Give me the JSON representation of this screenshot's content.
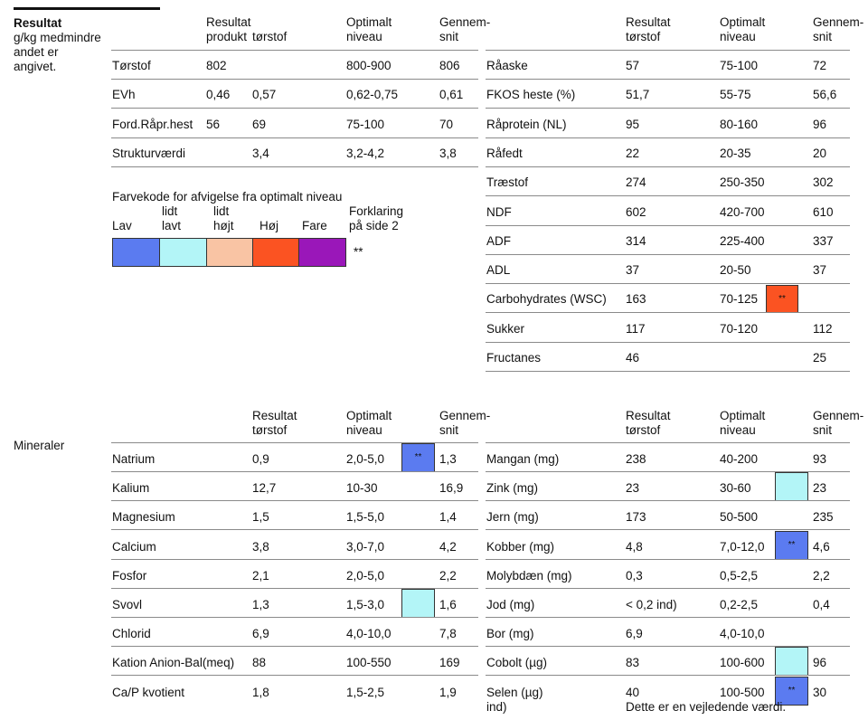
{
  "heading": {
    "title": "Resultat",
    "subtitle_lines": [
      "g/kg medmindre",
      "andet er",
      "angivet."
    ]
  },
  "block1": {
    "left_headers": {
      "c1": [
        "Resultat",
        "produkt"
      ],
      "c2": [
        "",
        "tørstof"
      ],
      "c3": [
        "Optimalt",
        "niveau"
      ],
      "c4": [
        "Gennem-",
        "snit"
      ]
    },
    "left_rows": [
      {
        "name": "Tørstof",
        "prod": "802",
        "ts": "",
        "opt": "800-900",
        "avg": "806"
      },
      {
        "name": "EVh",
        "prod": "0,46",
        "ts": "0,57",
        "opt": "0,62-0,75",
        "avg": "0,61"
      },
      {
        "name": "Ford.Råpr.hest",
        "prod": "56",
        "ts": "69",
        "opt": "75-100",
        "avg": "70"
      },
      {
        "name": "Strukturværdi",
        "prod": "",
        "ts": "3,4",
        "opt": "3,2-4,2",
        "avg": "3,8"
      }
    ],
    "right_headers": {
      "c1": [
        "Resultat",
        "tørstof"
      ],
      "c2": [
        "Optimalt",
        "niveau"
      ],
      "c3": [
        "Gennem-",
        "snit"
      ]
    },
    "right_rows": [
      {
        "name": "Råaske",
        "res": "57",
        "opt": "75-100",
        "avg": "72"
      },
      {
        "name": "FKOS heste (%)",
        "res": "51,7",
        "opt": "55-75",
        "avg": "56,6"
      },
      {
        "name": "Råprotein (NL)",
        "res": "95",
        "opt": "80-160",
        "avg": "96"
      },
      {
        "name": "Råfedt",
        "res": "22",
        "opt": "20-35",
        "avg": "20"
      },
      {
        "name": "Træstof",
        "res": "274",
        "opt": "250-350",
        "avg": "302"
      },
      {
        "name": "NDF",
        "res": "602",
        "opt": "420-700",
        "avg": "610"
      },
      {
        "name": "ADF",
        "res": "314",
        "opt": "225-400",
        "avg": "337"
      },
      {
        "name": "ADL",
        "res": "37",
        "opt": "20-50",
        "avg": "37"
      },
      {
        "name": "Carbohydrates (WSC)",
        "res": "163",
        "opt": "70-125",
        "avg": "",
        "mark": "**"
      },
      {
        "name": "Sukker",
        "res": "117",
        "opt": "70-120",
        "avg": "112"
      },
      {
        "name": "Fructanes",
        "res": "46",
        "opt": "",
        "avg": "25"
      }
    ]
  },
  "legend": {
    "title": "Farvekode for afvigelse fra optimalt niveau",
    "labels": [
      {
        "lines": [
          "",
          "Lav"
        ]
      },
      {
        "lines": [
          "lidt",
          "lavt"
        ]
      },
      {
        "lines": [
          "lidt",
          "højt"
        ]
      },
      {
        "lines": [
          "",
          "Høj"
        ]
      },
      {
        "lines": [
          "",
          "Fare"
        ]
      }
    ],
    "explain_lines": [
      "Forklaring",
      "på side 2"
    ],
    "stars": "**",
    "colors": [
      "#5b7bf0",
      "#b3f5f7",
      "#f9c4a4",
      "#fb5322",
      "#9a17b9"
    ]
  },
  "minerals": {
    "section_label": "Mineraler",
    "left_headers": {
      "c1": [
        "Resultat",
        "tørstof"
      ],
      "c2": [
        "Optimalt",
        "niveau"
      ],
      "c3": [
        "Gennem-",
        "snit"
      ]
    },
    "left_rows": [
      {
        "name": "Natrium",
        "res": "0,9",
        "opt": "2,0-5,0",
        "avg": "1,3",
        "mark": "**"
      },
      {
        "name": "Kalium",
        "res": "12,7",
        "opt": "10-30",
        "avg": "16,9"
      },
      {
        "name": "Magnesium",
        "res": "1,5",
        "opt": "1,5-5,0",
        "avg": "1,4"
      },
      {
        "name": "Calcium",
        "res": "3,8",
        "opt": "3,0-7,0",
        "avg": "4,2"
      },
      {
        "name": "Fosfor",
        "res": "2,1",
        "opt": "2,0-5,0",
        "avg": "2,2"
      },
      {
        "name": "Svovl",
        "res": "1,3",
        "opt": "1,5-3,0",
        "avg": "1,6",
        "mark": ""
      },
      {
        "name": "Chlorid",
        "res": "6,9",
        "opt": "4,0-10,0",
        "avg": "7,8"
      },
      {
        "name": "Kation Anion-Bal(meq)",
        "res": "88",
        "opt": "100-550",
        "avg": "169"
      },
      {
        "name": "Ca/P kvotient",
        "res": "1,8",
        "opt": "1,5-2,5",
        "avg": "1,9"
      }
    ],
    "right_headers": {
      "c1": [
        "Resultat",
        "tørstof"
      ],
      "c2": [
        "Optimalt",
        "niveau"
      ],
      "c3": [
        "Gennem-",
        "snit"
      ]
    },
    "right_rows": [
      {
        "name": "Mangan (mg)",
        "res": "238",
        "opt": "40-200",
        "avg": "93"
      },
      {
        "name": "Zink (mg)",
        "res": "23",
        "opt": "30-60",
        "avg": "23",
        "mark": ""
      },
      {
        "name": "Jern (mg)",
        "res": "173",
        "opt": "50-500",
        "avg": "235"
      },
      {
        "name": "Kobber (mg)",
        "res": "4,8",
        "opt": "7,0-12,0",
        "avg": "4,6",
        "mark": "**"
      },
      {
        "name": "Molybdæn (mg)",
        "res": "0,3",
        "opt": "0,5-2,5",
        "avg": "2,2"
      },
      {
        "name": "Jod (mg)",
        "res": "< 0,2   ind)",
        "opt": "0,2-2,5",
        "avg": "0,4"
      },
      {
        "name": "Bor (mg)",
        "res": "6,9",
        "opt": "4,0-10,0",
        "avg": ""
      },
      {
        "name": "Cobolt (µg)",
        "res": "83",
        "opt": "100-600",
        "avg": "96",
        "mark": ""
      },
      {
        "name": "Selen (µg)",
        "res": "40",
        "opt": "100-500",
        "avg": "30",
        "mark": "**"
      }
    ],
    "footer_left": "ind)",
    "footer_right": "Dette er en vejledende værdi."
  }
}
